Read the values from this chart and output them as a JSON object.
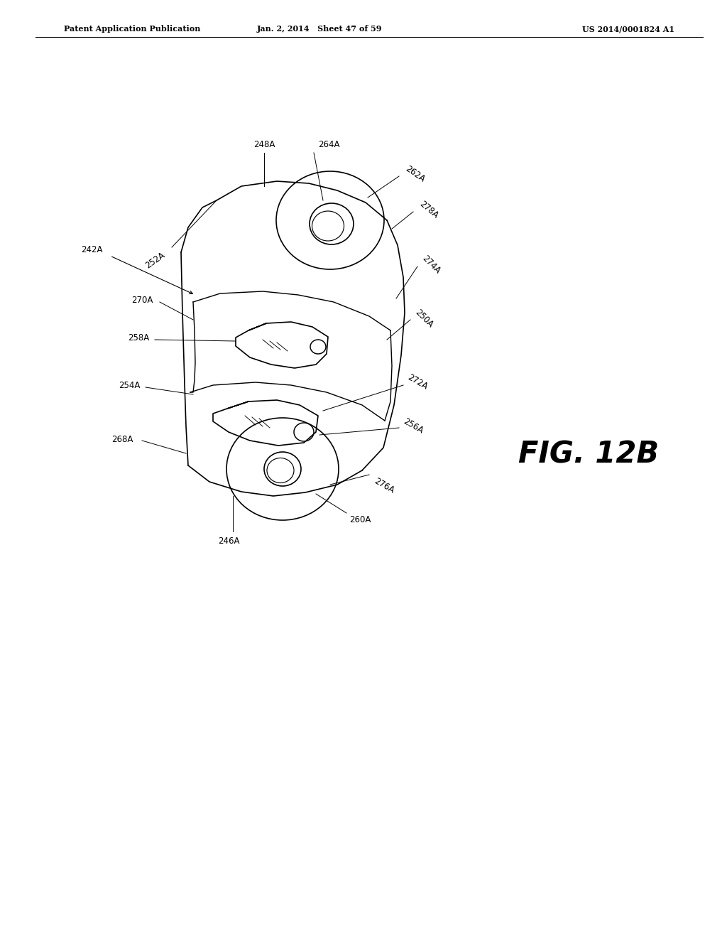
{
  "bg_color": "#ffffff",
  "header_left": "Patent Application Publication",
  "header_center": "Jan. 2, 2014   Sheet 47 of 59",
  "header_right": "US 2014/0001824 A1",
  "fig_label": "FIG. 12B",
  "labels": [
    "242A",
    "252A",
    "270A",
    "248A",
    "264A",
    "262A",
    "278A",
    "274A",
    "250A",
    "258A",
    "254A",
    "272A",
    "256A",
    "268A",
    "276A",
    "260A",
    "246A"
  ]
}
